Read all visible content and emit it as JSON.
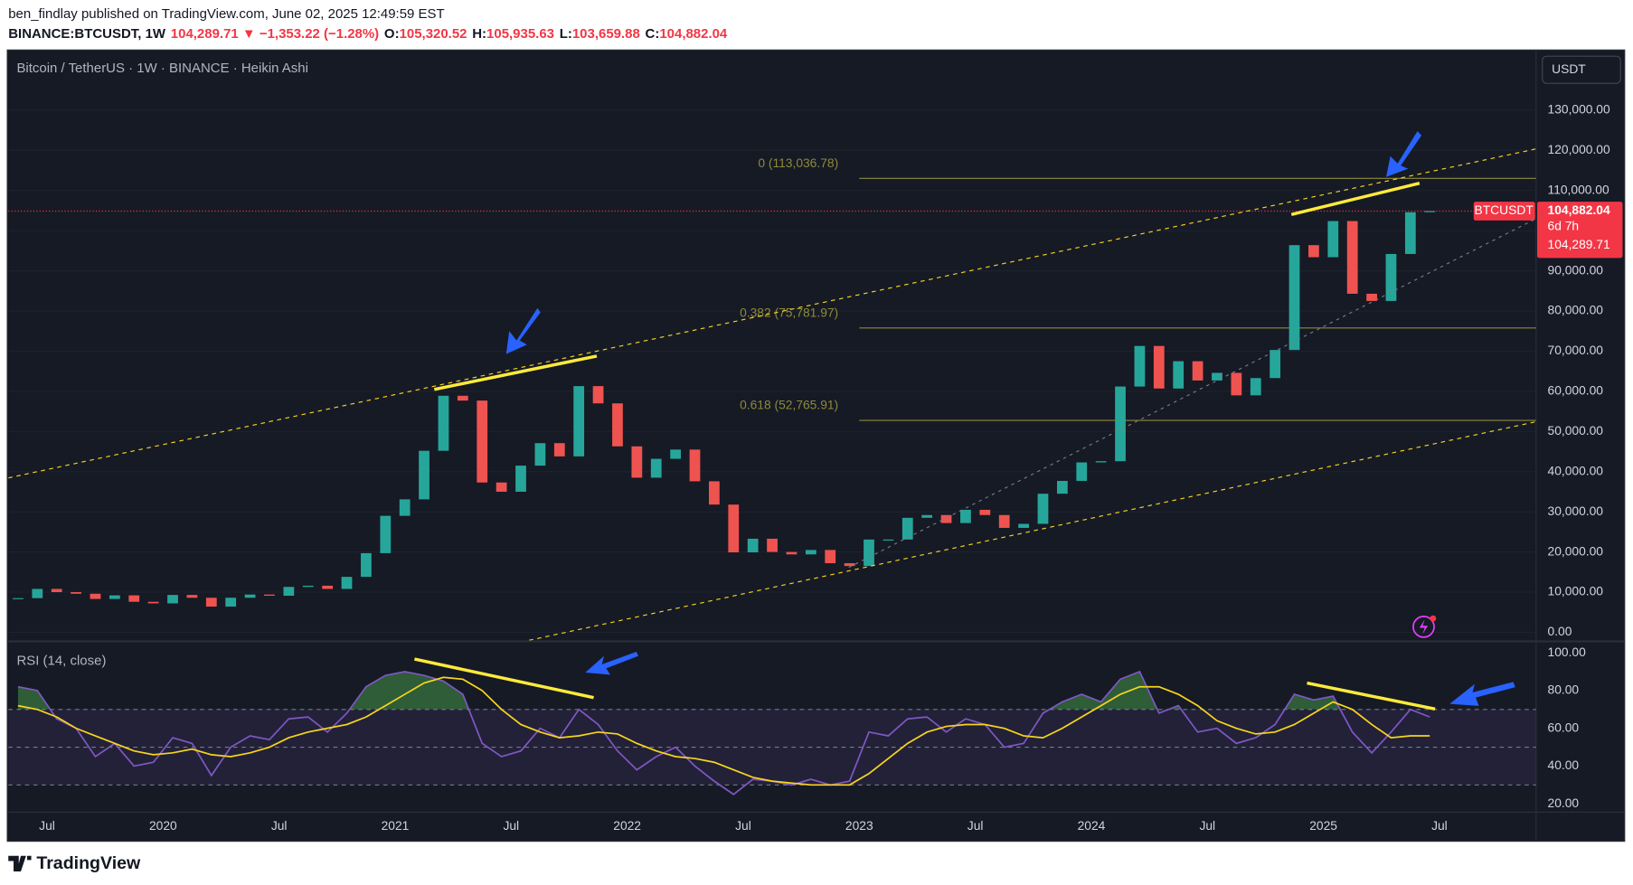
{
  "header": {
    "publisher": "ben_findlay published on TradingView.com, June 02, 2025 12:49:59 EST",
    "symbol_parts": [
      {
        "text": "BINANCE:BTCUSDT, 1W",
        "color": "#131722"
      },
      {
        "text": "104,289.71 ▼ −1,353.22 (−1.28%)",
        "color": "#f23645"
      },
      {
        "text": "O:",
        "color": "#131722"
      },
      {
        "text": "105,320.52",
        "color": "#f23645"
      },
      {
        "text": "H:",
        "color": "#131722"
      },
      {
        "text": "105,935.63",
        "color": "#f23645"
      },
      {
        "text": "L:",
        "color": "#131722"
      },
      {
        "text": "103,659.88",
        "color": "#f23645"
      },
      {
        "text": "C:",
        "color": "#131722"
      },
      {
        "text": "104,882.04",
        "color": "#f23645"
      }
    ]
  },
  "footer": {
    "brand": "TradingView"
  },
  "chart_data": [
    {
      "type": "candlestick",
      "title": "Bitcoin / TetherUS · 1W · BINANCE · Heikin Ashi",
      "currency": "USDT",
      "x": [
        "2019-05",
        "2019-06",
        "2019-07",
        "2019-08",
        "2019-09",
        "2019-10",
        "2019-11",
        "2019-12",
        "2020-01",
        "2020-02",
        "2020-03",
        "2020-04",
        "2020-05",
        "2020-06",
        "2020-07",
        "2020-08",
        "2020-09",
        "2020-10",
        "2020-11",
        "2020-12",
        "2021-01",
        "2021-02",
        "2021-03",
        "2021-04",
        "2021-05",
        "2021-06",
        "2021-07",
        "2021-08",
        "2021-09",
        "2021-10",
        "2021-11",
        "2021-12",
        "2022-01",
        "2022-02",
        "2022-03",
        "2022-04",
        "2022-05",
        "2022-06",
        "2022-07",
        "2022-08",
        "2022-09",
        "2022-10",
        "2022-11",
        "2022-12",
        "2023-01",
        "2023-02",
        "2023-03",
        "2023-04",
        "2023-05",
        "2023-06",
        "2023-07",
        "2023-08",
        "2023-09",
        "2023-10",
        "2023-11",
        "2023-12",
        "2024-01",
        "2024-02",
        "2024-03",
        "2024-04",
        "2024-05",
        "2024-06",
        "2024-07",
        "2024-08",
        "2024-09",
        "2024-10",
        "2024-11",
        "2024-12",
        "2025-01",
        "2025-02",
        "2025-03",
        "2025-04",
        "2025-05",
        "2025-06"
      ],
      "series": [
        {
          "name": "BTCUSDT",
          "up_color": "#26a69a",
          "down_color": "#ef5350",
          "values": [
            8500,
            10800,
            10000,
            9600,
            8300,
            9200,
            7600,
            7200,
            9300,
            8600,
            6400,
            8600,
            9400,
            9100,
            11300,
            11600,
            10800,
            13800,
            19700,
            29000,
            33100,
            45200,
            58900,
            57700,
            37300,
            35000,
            41500,
            47100,
            43800,
            61300,
            57000,
            46300,
            38500,
            43200,
            45500,
            37600,
            31800,
            19900,
            23300,
            20000,
            19400,
            20500,
            17200,
            16500,
            23100,
            23100,
            28500,
            29200,
            27200,
            30500,
            29200,
            26000,
            27000,
            34500,
            37700,
            42300,
            42600,
            61200,
            71300,
            60700,
            67500,
            62700,
            64600,
            59000,
            63300,
            70300,
            96400,
            93400,
            102400,
            84300,
            82500,
            94200,
            104600,
            104882.04
          ]
        }
      ],
      "xlim": [
        "2019-05",
        "2025-12"
      ],
      "xticks": [
        {
          "value": "2019-07",
          "label": "Jul"
        },
        {
          "value": "2020-01",
          "label": "2020"
        },
        {
          "value": "2020-07",
          "label": "Jul"
        },
        {
          "value": "2021-01",
          "label": "2021"
        },
        {
          "value": "2021-07",
          "label": "Jul"
        },
        {
          "value": "2022-01",
          "label": "2022"
        },
        {
          "value": "2022-07",
          "label": "Jul"
        },
        {
          "value": "2023-01",
          "label": "2023"
        },
        {
          "value": "2023-07",
          "label": "Jul"
        },
        {
          "value": "2024-01",
          "label": "2024"
        },
        {
          "value": "2024-07",
          "label": "Jul"
        },
        {
          "value": "2025-01",
          "label": "2025"
        },
        {
          "value": "2025-07",
          "label": "Jul"
        }
      ],
      "ylim": [
        -2000,
        145000
      ],
      "yticks": [
        {
          "value": 0,
          "label": "0.00"
        },
        {
          "value": 10000,
          "label": "10,000.00"
        },
        {
          "value": 20000,
          "label": "20,000.00"
        },
        {
          "value": 30000,
          "label": "30,000.00"
        },
        {
          "value": 40000,
          "label": "40,000.00"
        },
        {
          "value": 50000,
          "label": "50,000.00"
        },
        {
          "value": 60000,
          "label": "60,000.00"
        },
        {
          "value": 70000,
          "label": "70,000.00"
        },
        {
          "value": 80000,
          "label": "80,000.00"
        },
        {
          "value": 90000,
          "label": "90,000.00"
        },
        {
          "value": 100000,
          "label": "100,000.00"
        },
        {
          "value": 110000,
          "label": "110,000.00"
        },
        {
          "value": 120000,
          "label": "120,000.00"
        },
        {
          "value": 130000,
          "label": "130,000.00"
        }
      ],
      "fib_levels": [
        {
          "value": 113036.78,
          "label": "0 (113,036.78)"
        },
        {
          "value": 75781.97,
          "label": "0.382 (75,781.97)"
        },
        {
          "value": 52765.91,
          "label": "0.618 (52,765.91)"
        }
      ],
      "price_line": {
        "value": 104882.04,
        "label": "104,882.04"
      },
      "countdown": "6d 7h",
      "close_label": "104,289.71"
    },
    {
      "type": "rsi",
      "title": "RSI (14, close)",
      "series": [
        {
          "color": "#7e57c2",
          "values": [
            82,
            80,
            65,
            60,
            45,
            52,
            40,
            42,
            55,
            52,
            35,
            50,
            56,
            54,
            65,
            66,
            58,
            68,
            82,
            88,
            90,
            88,
            85,
            78,
            52,
            45,
            48,
            60,
            55,
            70,
            62,
            48,
            38,
            45,
            50,
            40,
            32,
            25,
            33,
            32,
            30,
            33,
            30,
            32,
            58,
            56,
            65,
            66,
            58,
            65,
            62,
            50,
            52,
            68,
            74,
            78,
            74,
            86,
            90,
            68,
            72,
            58,
            60,
            52,
            55,
            62,
            78,
            75,
            77,
            58,
            47,
            58,
            70,
            66
          ]
        },
        {
          "color": "#f7d51d",
          "values": [
            72,
            70,
            66,
            60,
            56,
            52,
            48,
            46,
            47,
            49,
            46,
            45,
            47,
            50,
            55,
            58,
            60,
            62,
            66,
            72,
            78,
            84,
            87,
            86,
            80,
            70,
            62,
            58,
            55,
            56,
            58,
            57,
            52,
            48,
            45,
            44,
            42,
            38,
            34,
            32,
            31,
            30,
            30,
            30,
            36,
            44,
            52,
            58,
            61,
            62,
            62,
            60,
            56,
            55,
            60,
            66,
            72,
            78,
            82,
            82,
            78,
            72,
            64,
            60,
            57,
            58,
            62,
            68,
            74,
            70,
            62,
            55,
            56,
            56
          ]
        }
      ],
      "ylim": [
        15.6,
        105.5
      ],
      "yticks": [
        {
          "value": 20,
          "label": "20.00"
        },
        {
          "value": 40,
          "label": "40.00"
        },
        {
          "value": 60,
          "label": "60.00"
        },
        {
          "value": 80,
          "label": "80.00"
        },
        {
          "value": 100,
          "label": "100.00"
        }
      ],
      "bands": [
        30,
        50,
        70
      ]
    }
  ]
}
